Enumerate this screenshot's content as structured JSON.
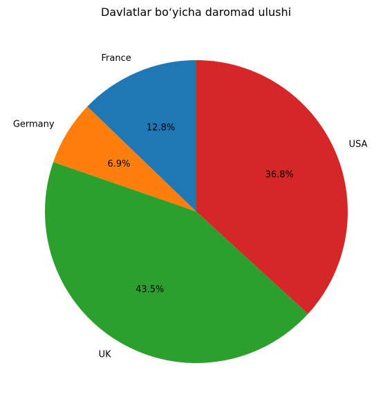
{
  "chart_data": {
    "type": "pie",
    "title": "Davlatlar bo‘yicha daromad ulushi",
    "categories": [
      "France",
      "Germany",
      "UK",
      "USA"
    ],
    "values": [
      12.8,
      6.9,
      43.5,
      36.8
    ],
    "value_labels": [
      "12.8%",
      "6.9%",
      "43.5%",
      "36.8%"
    ],
    "colors": [
      "#1f77b4",
      "#ff7f0e",
      "#2ca02c",
      "#d62728"
    ],
    "start_angle_deg": 90,
    "direction": "counterclockwise"
  }
}
